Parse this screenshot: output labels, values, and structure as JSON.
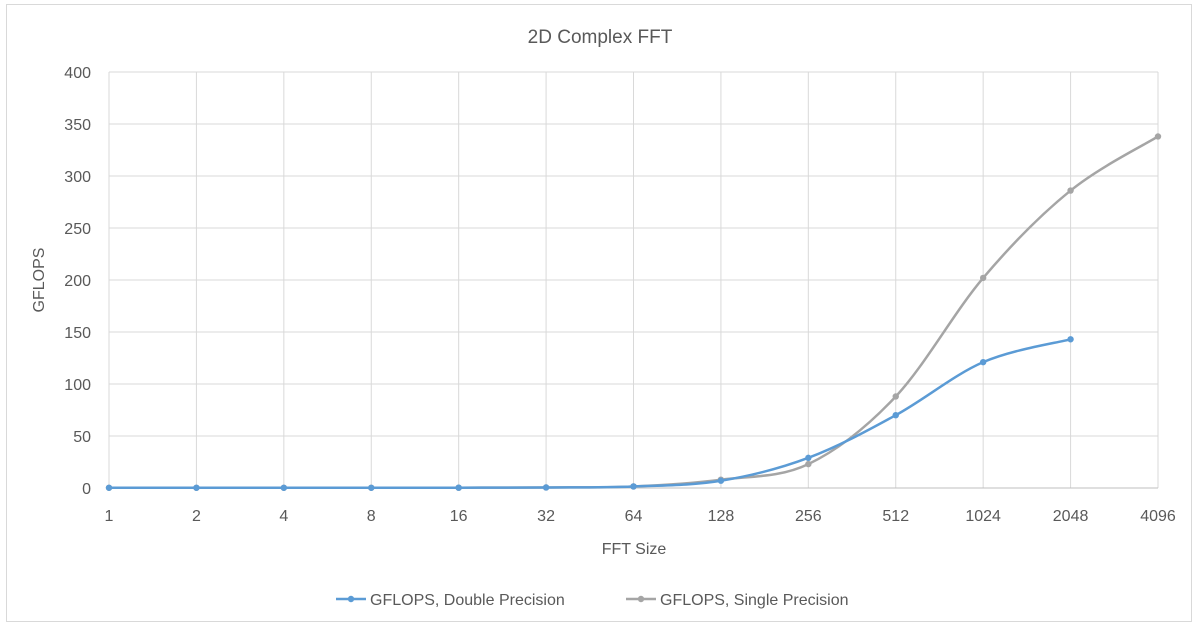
{
  "chart_data": {
    "type": "line",
    "title": "2D Complex FFT",
    "xlabel": "FFT Size",
    "ylabel": "GFLOPS",
    "categories": [
      "1",
      "2",
      "4",
      "8",
      "16",
      "32",
      "64",
      "128",
      "256",
      "512",
      "1024",
      "2048",
      "4096"
    ],
    "ylim": [
      0,
      400
    ],
    "yticks": [
      0,
      50,
      100,
      150,
      200,
      250,
      300,
      350,
      400
    ],
    "grid": true,
    "smooth": true,
    "legend_position": "bottom",
    "series": [
      {
        "name": "GFLOPS, Double Precision",
        "color": "#5b9bd5",
        "values": [
          0.2,
          0.2,
          0.2,
          0.2,
          0.3,
          0.5,
          1.5,
          7,
          29,
          70,
          121,
          143,
          null
        ]
      },
      {
        "name": "GFLOPS, Single Precision",
        "color": "#a5a5a5",
        "values": [
          0.2,
          0.2,
          0.2,
          0.2,
          0.3,
          0.5,
          1.5,
          8,
          23,
          88,
          202,
          286,
          338
        ]
      }
    ]
  }
}
